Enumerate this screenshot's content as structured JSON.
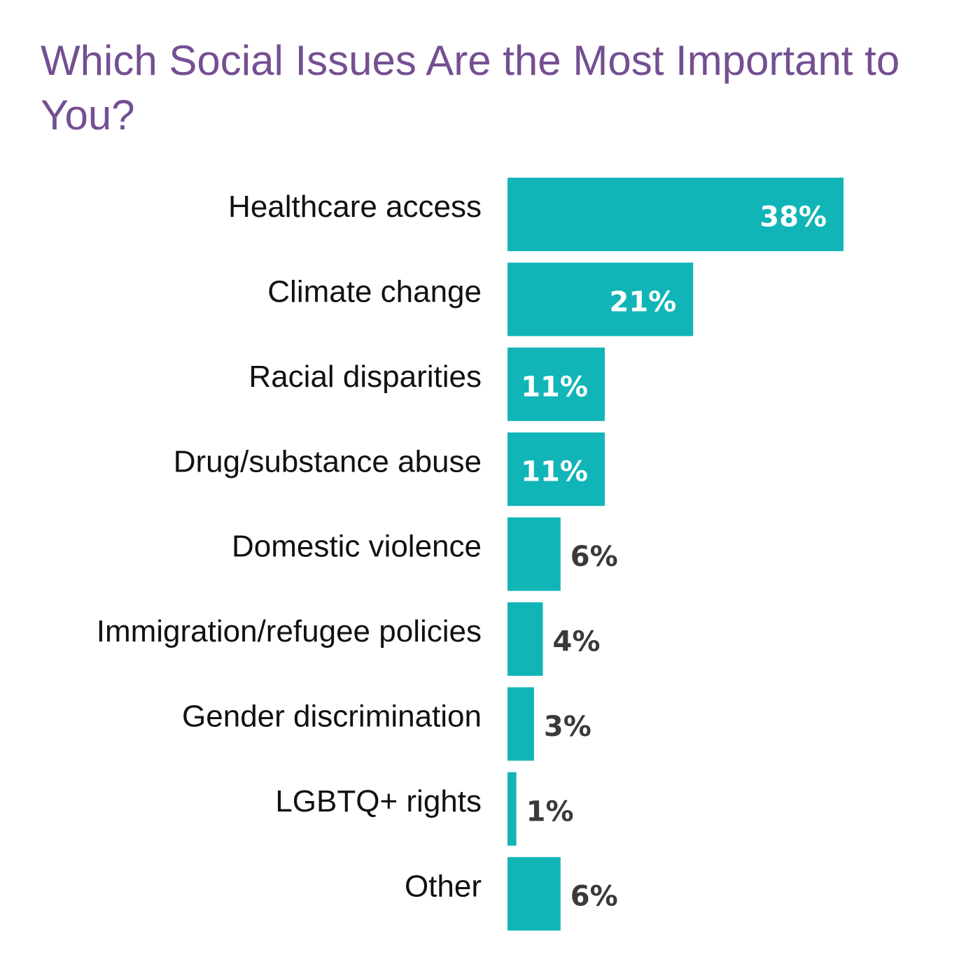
{
  "colors": {
    "title": "#744f92",
    "bar": "#11b5b7",
    "label_inside": "#ffffff",
    "label_outside": "#3a3a3a",
    "category_text": "#111111"
  },
  "chart_data": {
    "type": "bar",
    "orientation": "horizontal",
    "title": "Which Social Issues Are the Most Important to You?",
    "xlabel": "",
    "ylabel": "",
    "xlim": [
      0,
      38
    ],
    "grid": false,
    "legend": "none",
    "unit": "%",
    "categories": [
      "Healthcare access",
      "Climate change",
      "Racial disparities",
      "Drug/substance abuse",
      "Domestic violence",
      "Immigration/refugee policies",
      "Gender discrimination",
      "LGBTQ+ rights",
      "Other"
    ],
    "values": [
      38,
      21,
      11,
      11,
      6,
      4,
      3,
      1,
      6
    ],
    "value_labels": [
      "38%",
      "21%",
      "11%",
      "11%",
      "6%",
      "4%",
      "3%",
      "1%",
      "6%"
    ]
  }
}
